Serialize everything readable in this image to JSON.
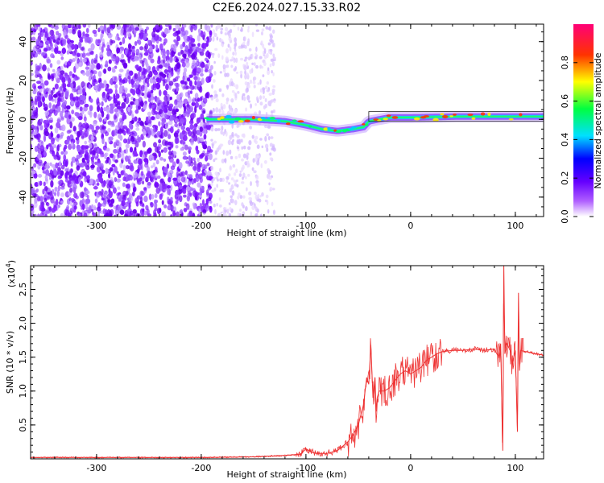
{
  "title": "C2E6.2024.027.15.33.R02",
  "chart_data": [
    {
      "type": "heatmap",
      "xlabel": "Height of straight line (km)",
      "ylabel": "Frequency (Hz)",
      "xlim": [
        -363,
        127
      ],
      "ylim": [
        -50,
        49
      ],
      "xticks": [
        -300,
        -200,
        -100,
        0,
        100
      ],
      "yticks": [
        -40,
        -20,
        0,
        20,
        40
      ],
      "xtick_labels": [
        "-300",
        "-200",
        "-100",
        "0",
        "100"
      ],
      "ytick_labels": [
        "-40",
        "-20",
        "0",
        "20",
        "40"
      ],
      "carrier_track": [
        {
          "x": -195,
          "y": 0
        },
        {
          "x": -150,
          "y": 0
        },
        {
          "x": -120,
          "y": -1
        },
        {
          "x": -100,
          "y": -3
        },
        {
          "x": -85,
          "y": -5
        },
        {
          "x": -70,
          "y": -6
        },
        {
          "x": -55,
          "y": -5
        },
        {
          "x": -45,
          "y": -4
        },
        {
          "x": -40,
          "y": -1
        },
        {
          "x": -20,
          "y": 1
        },
        {
          "x": 0,
          "y": 1
        },
        {
          "x": 50,
          "y": 1.5
        },
        {
          "x": 100,
          "y": 1.5
        },
        {
          "x": 127,
          "y": 1.5
        }
      ],
      "noise_region": {
        "x_from": -363,
        "x_to": -190,
        "sparse_to": -130
      },
      "grid": false
    },
    {
      "type": "colorbar",
      "label": "Normalized spectral amplitude",
      "range": [
        0,
        1
      ],
      "ticks": [
        0.0,
        0.2,
        0.4,
        0.6,
        0.8
      ],
      "tick_labels": [
        "0.0",
        "0.2",
        "0.4",
        "0.6",
        "0.8"
      ],
      "colors": [
        "#ffffff",
        "#8800ff",
        "#0000ff",
        "#00ffff",
        "#00ff00",
        "#ffff00",
        "#ff0000",
        "#ff0088"
      ]
    },
    {
      "type": "line",
      "xlabel": "Height of straight line (km)",
      "ylabel": "SNR (10 * v/v)",
      "scale_note_base": "(x10",
      "scale_note_exp": "4",
      "scale_note_close": ")",
      "xlim": [
        -363,
        127
      ],
      "ylim": [
        0,
        2.85
      ],
      "xticks": [
        -300,
        -200,
        -100,
        0,
        100
      ],
      "yticks": [
        0.5,
        1.0,
        1.5,
        2.0,
        2.5
      ],
      "xtick_labels": [
        "-300",
        "-200",
        "-100",
        "0",
        "100"
      ],
      "ytick_labels": [
        "0.5",
        "1.0",
        "1.5",
        "2.0",
        "2.5"
      ],
      "series": [
        {
          "color": "#ee3333",
          "x": [
            -363,
            -300,
            -250,
            -200,
            -150,
            -120,
            -105,
            -100,
            -95,
            -90,
            -80,
            -70,
            -60,
            -55,
            -50,
            -45,
            -42,
            -40,
            -38,
            -36,
            -34,
            -33,
            -32,
            -30,
            -25,
            -20,
            -15,
            -10,
            -5,
            0,
            5,
            10,
            15,
            20,
            25,
            30,
            40,
            50,
            60,
            70,
            80,
            84,
            86,
            88,
            89,
            90,
            92,
            95,
            97,
            100,
            102,
            103,
            104,
            105,
            110,
            120,
            127
          ],
          "y": [
            0.02,
            0.02,
            0.02,
            0.02,
            0.03,
            0.05,
            0.07,
            0.15,
            0.1,
            0.08,
            0.08,
            0.12,
            0.25,
            0.35,
            0.5,
            0.8,
            1.2,
            1.1,
            1.68,
            0.9,
            1.2,
            0.7,
            0.9,
            1.0,
            1.0,
            1.05,
            1.15,
            1.25,
            1.3,
            1.25,
            1.3,
            1.35,
            1.45,
            1.5,
            1.55,
            1.58,
            1.6,
            1.6,
            1.62,
            1.6,
            1.62,
            1.5,
            1.7,
            0.12,
            2.85,
            1.55,
            1.7,
            1.6,
            1.4,
            1.6,
            0.4,
            2.45,
            1.3,
            1.6,
            1.58,
            1.55,
            1.53
          ]
        }
      ]
    }
  ]
}
